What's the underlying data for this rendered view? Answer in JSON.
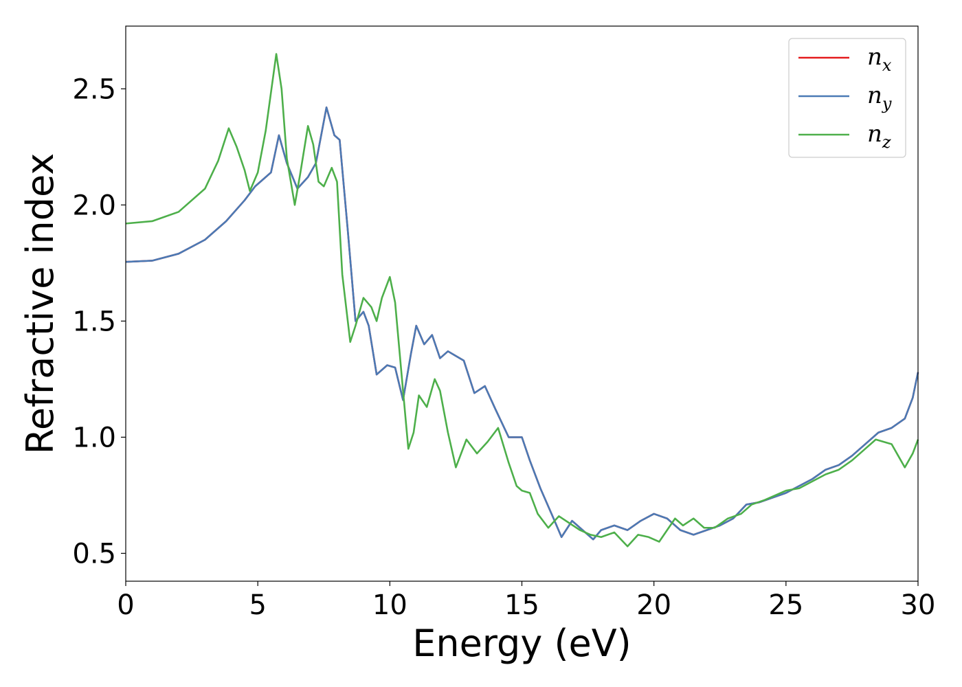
{
  "chart_data": {
    "type": "line",
    "title": "",
    "xlabel": "Energy (eV)",
    "ylabel": "Refractive index",
    "xlim": [
      0,
      30
    ],
    "ylim": [
      0.38,
      2.77
    ],
    "xticks": [
      "0",
      "5",
      "10",
      "15",
      "20",
      "25",
      "30"
    ],
    "yticks": [
      "0.5",
      "1.0",
      "1.5",
      "2.0",
      "2.5"
    ],
    "grid": false,
    "legend_position": "top-right",
    "series": [
      {
        "name": "n_x",
        "legend_base": "n",
        "legend_sub": "x",
        "color": "#e41a1c",
        "points": [
          [
            0,
            1.755
          ],
          [
            1,
            1.76
          ],
          [
            2,
            1.79
          ],
          [
            3,
            1.85
          ],
          [
            3.8,
            1.93
          ],
          [
            4.5,
            2.02
          ],
          [
            4.9,
            2.08
          ],
          [
            5.2,
            2.11
          ],
          [
            5.5,
            2.14
          ],
          [
            5.8,
            2.3
          ],
          [
            6.1,
            2.18
          ],
          [
            6.5,
            2.07
          ],
          [
            6.9,
            2.12
          ],
          [
            7.2,
            2.18
          ],
          [
            7.6,
            2.42
          ],
          [
            7.9,
            2.3
          ],
          [
            8.1,
            2.28
          ],
          [
            8.4,
            1.9
          ],
          [
            8.7,
            1.5
          ],
          [
            9.0,
            1.54
          ],
          [
            9.2,
            1.48
          ],
          [
            9.5,
            1.27
          ],
          [
            9.9,
            1.31
          ],
          [
            10.2,
            1.3
          ],
          [
            10.5,
            1.16
          ],
          [
            10.8,
            1.36
          ],
          [
            11.0,
            1.48
          ],
          [
            11.3,
            1.4
          ],
          [
            11.6,
            1.44
          ],
          [
            11.9,
            1.34
          ],
          [
            12.2,
            1.37
          ],
          [
            12.5,
            1.35
          ],
          [
            12.8,
            1.33
          ],
          [
            13.2,
            1.19
          ],
          [
            13.6,
            1.22
          ],
          [
            14.0,
            1.12
          ],
          [
            14.5,
            1.0
          ],
          [
            15.0,
            1.0
          ],
          [
            15.3,
            0.9
          ],
          [
            15.7,
            0.78
          ],
          [
            16.2,
            0.65
          ],
          [
            16.5,
            0.57
          ],
          [
            16.9,
            0.64
          ],
          [
            17.3,
            0.6
          ],
          [
            17.7,
            0.56
          ],
          [
            18.0,
            0.6
          ],
          [
            18.5,
            0.62
          ],
          [
            19.0,
            0.6
          ],
          [
            19.5,
            0.64
          ],
          [
            20.0,
            0.67
          ],
          [
            20.5,
            0.65
          ],
          [
            21.0,
            0.6
          ],
          [
            21.5,
            0.58
          ],
          [
            22.0,
            0.6
          ],
          [
            22.5,
            0.62
          ],
          [
            23.0,
            0.65
          ],
          [
            23.5,
            0.71
          ],
          [
            24.0,
            0.72
          ],
          [
            24.5,
            0.74
          ],
          [
            25.0,
            0.76
          ],
          [
            25.5,
            0.79
          ],
          [
            26.0,
            0.82
          ],
          [
            26.5,
            0.86
          ],
          [
            27.0,
            0.88
          ],
          [
            27.5,
            0.92
          ],
          [
            28.0,
            0.97
          ],
          [
            28.5,
            1.02
          ],
          [
            29.0,
            1.04
          ],
          [
            29.5,
            1.08
          ],
          [
            29.8,
            1.17
          ],
          [
            30.0,
            1.28
          ]
        ]
      },
      {
        "name": "n_y",
        "legend_base": "n",
        "legend_sub": "y",
        "color": "#4a7ab5",
        "points": [
          [
            0,
            1.755
          ],
          [
            1,
            1.76
          ],
          [
            2,
            1.79
          ],
          [
            3,
            1.85
          ],
          [
            3.8,
            1.93
          ],
          [
            4.5,
            2.02
          ],
          [
            4.9,
            2.08
          ],
          [
            5.2,
            2.11
          ],
          [
            5.5,
            2.14
          ],
          [
            5.8,
            2.3
          ],
          [
            6.1,
            2.18
          ],
          [
            6.5,
            2.07
          ],
          [
            6.9,
            2.12
          ],
          [
            7.2,
            2.18
          ],
          [
            7.6,
            2.42
          ],
          [
            7.9,
            2.3
          ],
          [
            8.1,
            2.28
          ],
          [
            8.4,
            1.9
          ],
          [
            8.7,
            1.5
          ],
          [
            9.0,
            1.54
          ],
          [
            9.2,
            1.48
          ],
          [
            9.5,
            1.27
          ],
          [
            9.9,
            1.31
          ],
          [
            10.2,
            1.3
          ],
          [
            10.5,
            1.16
          ],
          [
            10.8,
            1.36
          ],
          [
            11.0,
            1.48
          ],
          [
            11.3,
            1.4
          ],
          [
            11.6,
            1.44
          ],
          [
            11.9,
            1.34
          ],
          [
            12.2,
            1.37
          ],
          [
            12.5,
            1.35
          ],
          [
            12.8,
            1.33
          ],
          [
            13.2,
            1.19
          ],
          [
            13.6,
            1.22
          ],
          [
            14.0,
            1.12
          ],
          [
            14.5,
            1.0
          ],
          [
            15.0,
            1.0
          ],
          [
            15.3,
            0.9
          ],
          [
            15.7,
            0.78
          ],
          [
            16.2,
            0.65
          ],
          [
            16.5,
            0.57
          ],
          [
            16.9,
            0.64
          ],
          [
            17.3,
            0.6
          ],
          [
            17.7,
            0.56
          ],
          [
            18.0,
            0.6
          ],
          [
            18.5,
            0.62
          ],
          [
            19.0,
            0.6
          ],
          [
            19.5,
            0.64
          ],
          [
            20.0,
            0.67
          ],
          [
            20.5,
            0.65
          ],
          [
            21.0,
            0.6
          ],
          [
            21.5,
            0.58
          ],
          [
            22.0,
            0.6
          ],
          [
            22.5,
            0.62
          ],
          [
            23.0,
            0.65
          ],
          [
            23.5,
            0.71
          ],
          [
            24.0,
            0.72
          ],
          [
            24.5,
            0.74
          ],
          [
            25.0,
            0.76
          ],
          [
            25.5,
            0.79
          ],
          [
            26.0,
            0.82
          ],
          [
            26.5,
            0.86
          ],
          [
            27.0,
            0.88
          ],
          [
            27.5,
            0.92
          ],
          [
            28.0,
            0.97
          ],
          [
            28.5,
            1.02
          ],
          [
            29.0,
            1.04
          ],
          [
            29.5,
            1.08
          ],
          [
            29.8,
            1.17
          ],
          [
            30.0,
            1.28
          ]
        ]
      },
      {
        "name": "n_z",
        "legend_base": "n",
        "legend_sub": "z",
        "color": "#4daf4a",
        "points": [
          [
            0,
            1.92
          ],
          [
            1,
            1.93
          ],
          [
            2,
            1.97
          ],
          [
            3,
            2.07
          ],
          [
            3.5,
            2.19
          ],
          [
            3.9,
            2.33
          ],
          [
            4.2,
            2.25
          ],
          [
            4.5,
            2.15
          ],
          [
            4.7,
            2.06
          ],
          [
            5.0,
            2.14
          ],
          [
            5.3,
            2.32
          ],
          [
            5.7,
            2.65
          ],
          [
            5.9,
            2.5
          ],
          [
            6.1,
            2.2
          ],
          [
            6.4,
            2.0
          ],
          [
            6.6,
            2.13
          ],
          [
            6.9,
            2.34
          ],
          [
            7.1,
            2.26
          ],
          [
            7.3,
            2.1
          ],
          [
            7.5,
            2.08
          ],
          [
            7.8,
            2.16
          ],
          [
            8.0,
            2.1
          ],
          [
            8.2,
            1.7
          ],
          [
            8.5,
            1.41
          ],
          [
            8.7,
            1.48
          ],
          [
            9.0,
            1.6
          ],
          [
            9.3,
            1.56
          ],
          [
            9.5,
            1.5
          ],
          [
            9.7,
            1.6
          ],
          [
            10.0,
            1.69
          ],
          [
            10.2,
            1.58
          ],
          [
            10.5,
            1.2
          ],
          [
            10.7,
            0.95
          ],
          [
            10.9,
            1.02
          ],
          [
            11.1,
            1.18
          ],
          [
            11.4,
            1.13
          ],
          [
            11.7,
            1.25
          ],
          [
            11.9,
            1.2
          ],
          [
            12.2,
            1.02
          ],
          [
            12.5,
            0.87
          ],
          [
            12.9,
            0.99
          ],
          [
            13.3,
            0.93
          ],
          [
            13.7,
            0.98
          ],
          [
            14.1,
            1.04
          ],
          [
            14.5,
            0.89
          ],
          [
            14.8,
            0.79
          ],
          [
            15.0,
            0.77
          ],
          [
            15.3,
            0.76
          ],
          [
            15.6,
            0.67
          ],
          [
            16.0,
            0.61
          ],
          [
            16.4,
            0.66
          ],
          [
            16.8,
            0.63
          ],
          [
            17.2,
            0.6
          ],
          [
            17.6,
            0.58
          ],
          [
            18.0,
            0.57
          ],
          [
            18.5,
            0.59
          ],
          [
            19.0,
            0.53
          ],
          [
            19.4,
            0.58
          ],
          [
            19.8,
            0.57
          ],
          [
            20.2,
            0.55
          ],
          [
            20.5,
            0.6
          ],
          [
            20.8,
            0.65
          ],
          [
            21.1,
            0.62
          ],
          [
            21.5,
            0.65
          ],
          [
            21.9,
            0.61
          ],
          [
            22.3,
            0.61
          ],
          [
            22.8,
            0.65
          ],
          [
            23.3,
            0.67
          ],
          [
            23.7,
            0.71
          ],
          [
            24.2,
            0.73
          ],
          [
            24.6,
            0.75
          ],
          [
            25.0,
            0.77
          ],
          [
            25.5,
            0.78
          ],
          [
            26.0,
            0.81
          ],
          [
            26.5,
            0.84
          ],
          [
            27.0,
            0.86
          ],
          [
            27.5,
            0.9
          ],
          [
            28.0,
            0.95
          ],
          [
            28.4,
            0.99
          ],
          [
            28.7,
            0.98
          ],
          [
            29.0,
            0.97
          ],
          [
            29.3,
            0.91
          ],
          [
            29.5,
            0.87
          ],
          [
            29.8,
            0.93
          ],
          [
            30.0,
            0.99
          ]
        ]
      }
    ]
  }
}
